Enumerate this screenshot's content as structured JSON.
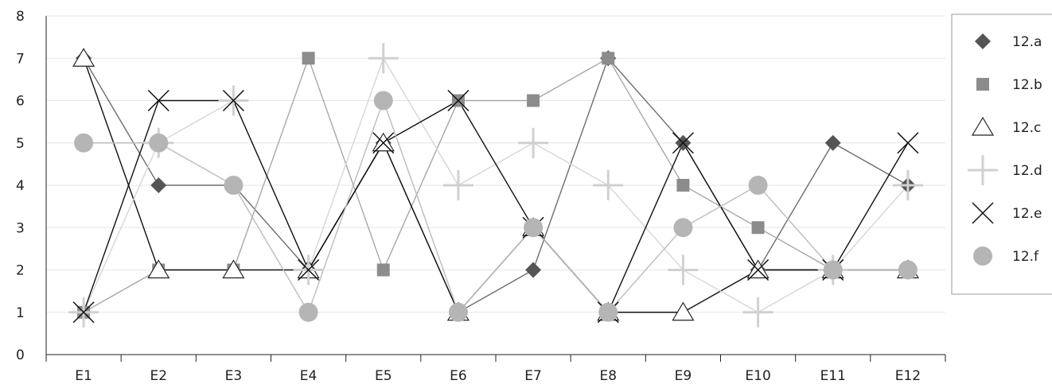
{
  "chart_data": {
    "type": "line",
    "title": "",
    "xlabel": "",
    "ylabel": "",
    "categories": [
      "E1",
      "E2",
      "E3",
      "E4",
      "E5",
      "E6",
      "E7",
      "E8",
      "E9",
      "E10",
      "E11",
      "E12"
    ],
    "ylim": [
      0,
      8
    ],
    "yticks": [
      0,
      1,
      2,
      3,
      4,
      5,
      6,
      7,
      8
    ],
    "grid": true,
    "legend": "right",
    "series": [
      {
        "name": "12.a",
        "marker": "diamond",
        "color": "#555555",
        "line_color": "#6e6e6e",
        "values": [
          7,
          4,
          4,
          2,
          5,
          1,
          2,
          7,
          5,
          2,
          5,
          4
        ]
      },
      {
        "name": "12.b",
        "marker": "square",
        "color": "#8c8c8c",
        "line_color": "#a8a8a8",
        "values": [
          1,
          2,
          2,
          7,
          2,
          6,
          6,
          7,
          4,
          3,
          2,
          2
        ]
      },
      {
        "name": "12.c",
        "marker": "triangle",
        "color": "#222222",
        "line_color": "#111111",
        "values": [
          7,
          2,
          2,
          2,
          5,
          1,
          3,
          1,
          1,
          2,
          2,
          2
        ]
      },
      {
        "name": "12.d",
        "marker": "plus",
        "color": "#d0d0d0",
        "line_color": "#d6d6d6",
        "values": [
          1,
          5,
          6,
          2,
          7,
          4,
          5,
          4,
          2,
          1,
          2,
          4
        ]
      },
      {
        "name": "12.e",
        "marker": "x",
        "color": "#111111",
        "line_color": "#111111",
        "values": [
          1,
          6,
          6,
          2,
          5,
          6,
          3,
          1,
          5,
          2,
          2,
          5
        ]
      },
      {
        "name": "12.f",
        "marker": "circle",
        "color": "#b5b5b5",
        "line_color": "#bcbcbc",
        "values": [
          5,
          5,
          4,
          1,
          6,
          1,
          3,
          1,
          3,
          4,
          2,
          2
        ]
      }
    ]
  }
}
